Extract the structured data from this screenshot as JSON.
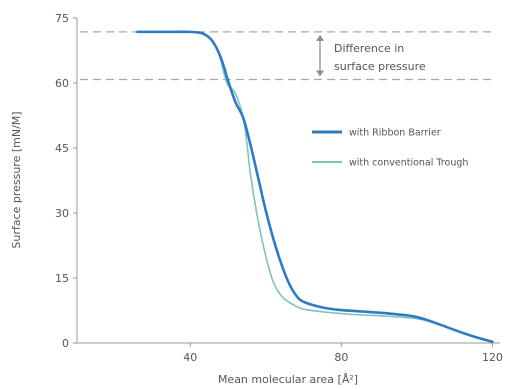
{
  "chart_data": {
    "type": "line",
    "xlabel": "Mean molecular area [Å²]",
    "ylabel": "Surface pressure [mN/M]",
    "xlim": [
      10,
      122
    ],
    "ylim": [
      0,
      75
    ],
    "xticks": [
      40,
      80,
      120
    ],
    "yticks": [
      0,
      15,
      30,
      45,
      60,
      75
    ],
    "grid": false,
    "legend_position": "right",
    "series": [
      {
        "name": "with Ribbon Barrier",
        "color": "#2e7bc4",
        "x": [
          26,
          30,
          35,
          40,
          43,
          45,
          46,
          47,
          48,
          49,
          50,
          52,
          54,
          56,
          58,
          60,
          62,
          64,
          66,
          68,
          70,
          75,
          80,
          85,
          90,
          95,
          100,
          105,
          110,
          115,
          120
        ],
        "y": [
          71.8,
          71.8,
          71.8,
          71.8,
          71.5,
          70.5,
          69.5,
          68,
          66,
          63.5,
          60.5,
          55.5,
          52,
          45.5,
          38,
          30.5,
          24,
          18.5,
          14,
          11,
          9.5,
          8.2,
          7.6,
          7.3,
          7,
          6.6,
          6,
          4.6,
          3,
          1.5,
          0.3
        ]
      },
      {
        "name": "with conventional Trough",
        "color": "#7fc3c0",
        "x": [
          26,
          30,
          35,
          40,
          43,
          45,
          46,
          47,
          48,
          49,
          50,
          52,
          54,
          55,
          56,
          58,
          60,
          62,
          64,
          66,
          68,
          70,
          75,
          80,
          85,
          90,
          95,
          100,
          105,
          110,
          115,
          120
        ],
        "y": [
          71.8,
          71.8,
          71.8,
          71.8,
          71.5,
          70.5,
          69.5,
          68,
          65.5,
          62,
          59.5,
          57.5,
          52,
          46,
          38.5,
          28,
          20,
          14,
          11,
          9.5,
          8.5,
          7.8,
          7.2,
          6.8,
          6.5,
          6.3,
          6,
          5.6,
          4.6,
          3,
          1.5,
          0.3
        ]
      }
    ],
    "reference_lines": [
      71.8,
      60.8
    ],
    "annotation": {
      "lines": [
        "Difference in",
        "surface pressure"
      ]
    }
  }
}
